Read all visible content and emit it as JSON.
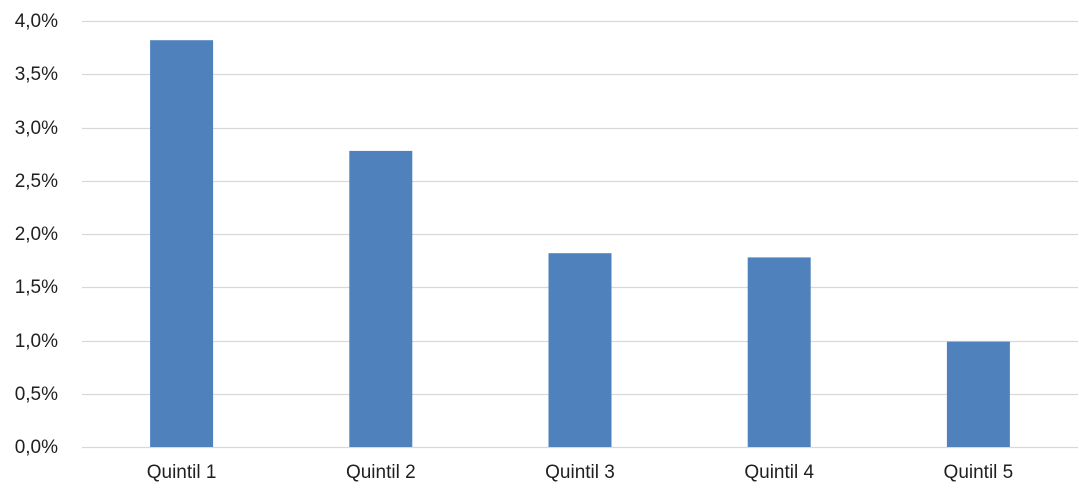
{
  "chart_data": {
    "type": "bar",
    "categories": [
      "Quintil 1",
      "Quintil 2",
      "Quintil 3",
      "Quintil 4",
      "Quintil 5"
    ],
    "values": [
      3.82,
      2.78,
      1.82,
      1.78,
      0.99
    ],
    "value_format": "percent",
    "ylim": [
      0,
      4.0
    ],
    "y_ticks": [
      0,
      0.5,
      1.0,
      1.5,
      2.0,
      2.5,
      3.0,
      3.5,
      4.0
    ],
    "y_tick_labels": [
      "0,0%",
      "0,5%",
      "1,0%",
      "1,5%",
      "2,0%",
      "2,5%",
      "3,0%",
      "3,5%",
      "4,0%"
    ],
    "title": "",
    "xlabel": "",
    "ylabel": "",
    "grid": "horizontal",
    "legend": "none",
    "colors": {
      "bar": "#4f81bd",
      "grid": "#d9d9d9",
      "text": "#1f1f1f"
    }
  }
}
